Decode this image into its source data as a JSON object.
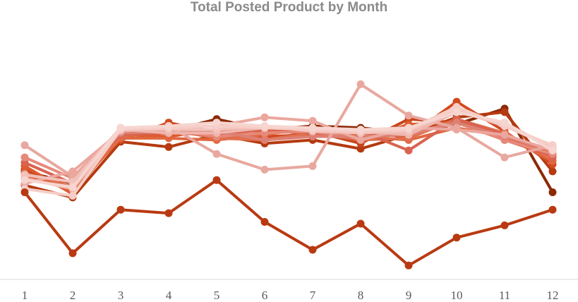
{
  "chart_data": {
    "type": "line",
    "title": "Total Posted Product by Month",
    "xlabel": "",
    "ylabel": "",
    "x": [
      1,
      2,
      3,
      4,
      5,
      6,
      7,
      8,
      9,
      10,
      11,
      12
    ],
    "ylim": [
      0,
      100
    ],
    "grid": false,
    "legend": "none",
    "series": [
      {
        "color": "#8b2a05",
        "values": [
          62,
          55,
          86,
          85,
          92,
          86,
          88,
          87,
          84,
          89,
          98,
          50
        ]
      },
      {
        "color": "#b53a10",
        "values": [
          54,
          47,
          79,
          76,
          83,
          78,
          80,
          75,
          83,
          93,
          96,
          62
        ]
      },
      {
        "color": "#c8451b",
        "values": [
          63,
          52,
          82,
          88,
          85,
          80,
          85,
          78,
          92,
          90,
          80,
          71
        ]
      },
      {
        "color": "#d24a1f",
        "values": [
          58,
          56,
          80,
          90,
          84,
          82,
          83,
          84,
          82,
          102,
          85,
          66
        ]
      },
      {
        "color": "#de5a2d",
        "values": [
          65,
          49,
          83,
          82,
          86,
          85,
          86,
          80,
          89,
          90,
          83,
          72
        ]
      },
      {
        "color": "#e0673f",
        "values": [
          60,
          51,
          81,
          81,
          80,
          83,
          87,
          82,
          80,
          87,
          82,
          68
        ]
      },
      {
        "color": "#e0704f",
        "values": [
          61,
          53,
          82,
          86,
          81,
          80,
          84,
          80,
          81,
          92,
          84,
          70
        ]
      },
      {
        "color": "#d9634f",
        "values": [
          67,
          55,
          83,
          84,
          83,
          86,
          84,
          85,
          74,
          92,
          83,
          70
        ]
      },
      {
        "color": "#e7897a",
        "values": [
          70,
          58,
          84,
          86,
          82,
          84,
          85,
          81,
          84,
          90,
          80,
          72
        ]
      },
      {
        "color": "#dd8073",
        "values": [
          60,
          56,
          84,
          85,
          85,
          80,
          82,
          82,
          83,
          90,
          82,
          74
        ]
      },
      {
        "color": "#e8a89f",
        "values": [
          77,
          59,
          85,
          88,
          72,
          63,
          65,
          112,
          94,
          87,
          70,
          77
        ]
      },
      {
        "color": "#eba79e",
        "values": [
          55,
          62,
          85,
          87,
          88,
          93,
          91,
          80,
          87,
          86,
          83,
          74
        ]
      },
      {
        "color": "#efb6ae",
        "values": [
          58,
          52,
          86,
          84,
          84,
          87,
          86,
          85,
          83,
          96,
          90,
          75
        ]
      },
      {
        "color": "#f2c2bb",
        "values": [
          60,
          56,
          87,
          86,
          86,
          88,
          85,
          84,
          85,
          97,
          88,
          76
        ]
      },
      {
        "color": "#f6cdc7",
        "values": [
          52,
          48,
          86,
          87,
          88,
          87,
          86,
          85,
          86,
          99,
          88,
          77
        ]
      },
      {
        "color": "#f7d5d0",
        "values": [
          57,
          53,
          87,
          88,
          90,
          88,
          87,
          86,
          87,
          96,
          90,
          74
        ]
      },
      {
        "color": "#b93a12",
        "values": [
          50,
          15,
          40,
          38,
          57,
          33,
          17,
          32,
          8,
          24,
          31,
          40
        ]
      }
    ]
  }
}
